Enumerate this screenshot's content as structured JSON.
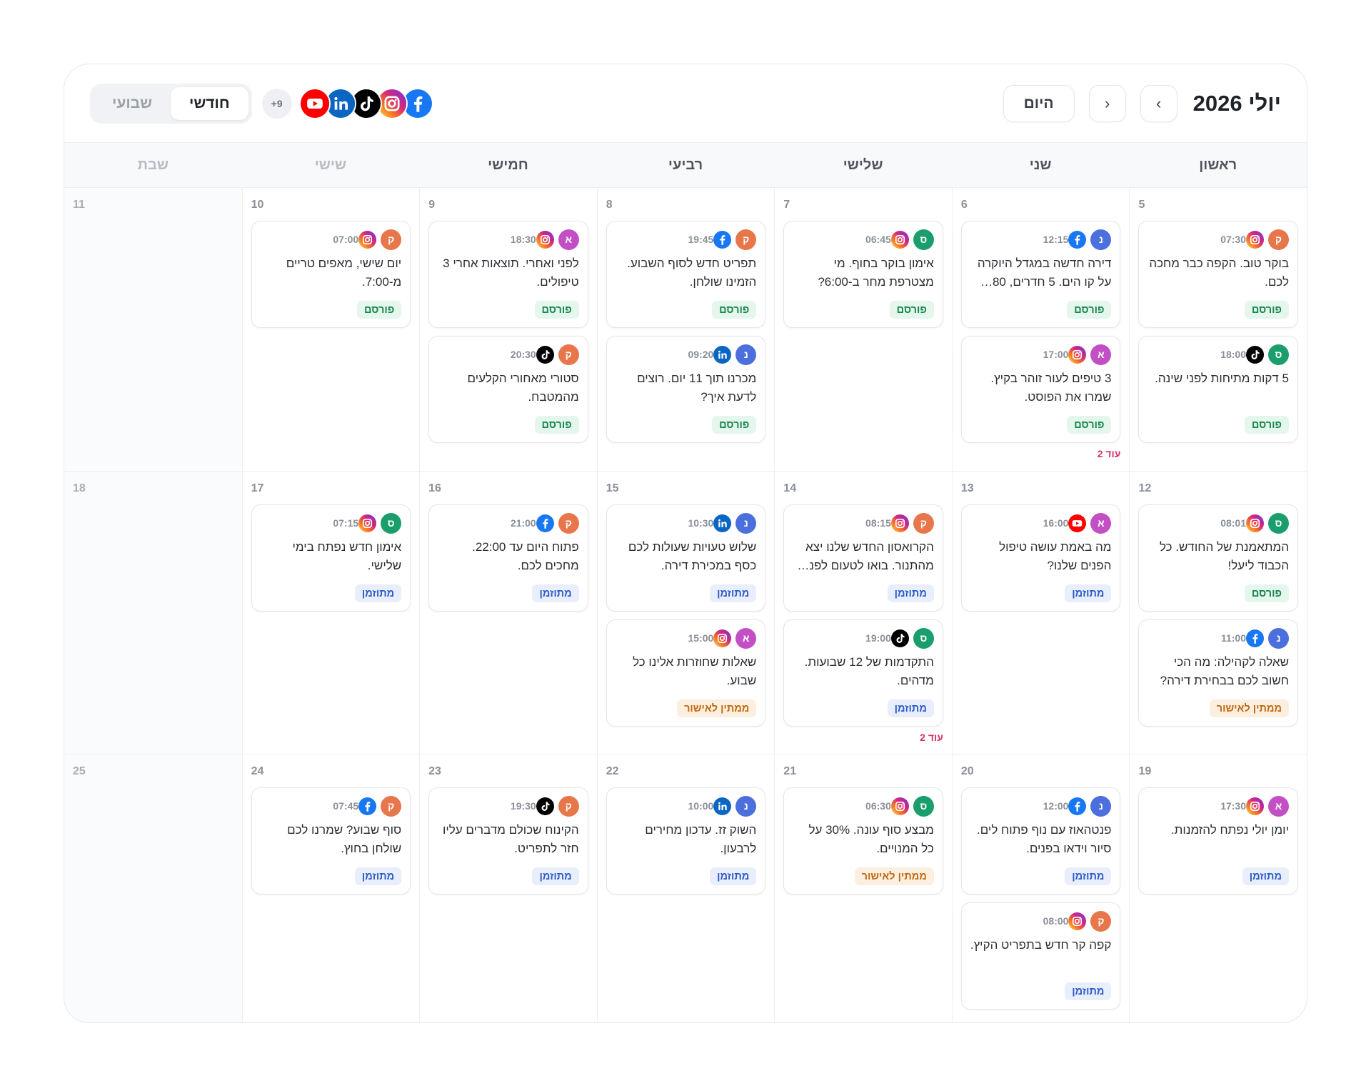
{
  "header": {
    "title": "יולי 2026",
    "prev": "‹",
    "next": "›",
    "today": "היום",
    "views": [
      "חודשי",
      "שבועי"
    ],
    "active_view": 0,
    "more_platforms": "+9",
    "platforms": [
      "facebook",
      "instagram",
      "tiktok",
      "linkedin",
      "youtube"
    ]
  },
  "weekdays": [
    "ראשון",
    "שני",
    "שלישי",
    "רביעי",
    "חמישי",
    "שישי",
    "שבת"
  ],
  "avatars": [
    {
      "letter": "ק",
      "color": "#e8764b"
    },
    {
      "letter": "ס",
      "color": "#1a9e6c"
    },
    {
      "letter": "נ",
      "color": "#4b6fdc"
    },
    {
      "letter": "א",
      "color": "#c24fc4"
    }
  ],
  "statuses": [
    {
      "label": "פורסם",
      "color": "#17864f",
      "background": "#e5f6ed"
    },
    {
      "label": "מתוזמן",
      "color": "#2d5bc8",
      "background": "#e8eefb"
    },
    {
      "label": "ממתין לאישור",
      "color": "#bf6a12",
      "background": "#fdefdf"
    }
  ],
  "weeks": [
    {
      "days": [
        {
          "day": 5,
          "posts": [
            {
              "time": "07:30",
              "avatar": 0,
              "platform": "instagram",
              "text": "בוקר טוב. הקפה כבר מחכה לכם.",
              "status": 0
            },
            {
              "time": "18:00",
              "avatar": 1,
              "platform": "tiktok",
              "text": "5 דקות מתיחות לפני שינה.",
              "status": 0
            }
          ]
        },
        {
          "day": 6,
          "posts": [
            {
              "time": "12:15",
              "avatar": 2,
              "platform": "facebook",
              "text": "דירה חדשה במגדל היוקרה על קו הים. 5 חדרים, 80…",
              "status": 0
            },
            {
              "time": "17:00",
              "avatar": 3,
              "platform": "instagram",
              "text": "3 טיפים לעור זוהר בקיץ. שמרו את הפוסט.",
              "status": 0
            }
          ],
          "more": "עוד 2"
        },
        {
          "day": 7,
          "posts": [
            {
              "time": "06:45",
              "avatar": 1,
              "platform": "instagram",
              "text": "אימון בוקר בחוף. מי מצטרפת מחר ב-6:00?",
              "status": 0
            }
          ]
        },
        {
          "day": 8,
          "posts": [
            {
              "time": "19:45",
              "avatar": 0,
              "platform": "facebook",
              "text": "תפריט חדש לסוף השבוע. הזמינו שולחן.",
              "status": 0
            },
            {
              "time": "09:20",
              "avatar": 2,
              "platform": "linkedin",
              "text": "מכרנו תוך 11 יום. רוצים לדעת איך?",
              "status": 0
            }
          ]
        },
        {
          "day": 9,
          "posts": [
            {
              "time": "18:30",
              "avatar": 3,
              "platform": "instagram",
              "text": "לפני ואחרי. תוצאות אחרי 3 טיפולים.",
              "status": 0
            },
            {
              "time": "20:30",
              "avatar": 0,
              "platform": "tiktok",
              "text": "סטורי מאחורי הקלעים מהמטבח.",
              "status": 0
            }
          ]
        },
        {
          "day": 10,
          "posts": [
            {
              "time": "07:00",
              "avatar": 0,
              "platform": "instagram",
              "text": "יום שישי, מאפים טריים מ-7:00.",
              "status": 0
            }
          ]
        },
        {
          "day": 11,
          "posts": []
        }
      ]
    },
    {
      "days": [
        {
          "day": 12,
          "posts": [
            {
              "time": "08:01",
              "avatar": 1,
              "platform": "instagram",
              "text": "המתאמנת של החודש. כל הכבוד ליעל!",
              "status": 0
            },
            {
              "time": "11:00",
              "avatar": 2,
              "platform": "facebook",
              "text": "שאלה לקהילה: מה הכי חשוב לכם בבחירת דירה?",
              "status": 2
            }
          ]
        },
        {
          "day": 13,
          "posts": [
            {
              "time": "16:00",
              "avatar": 3,
              "platform": "youtube",
              "text": "מה באמת עושה טיפול הפנים שלנו?",
              "status": 1
            }
          ]
        },
        {
          "day": 14,
          "posts": [
            {
              "time": "08:15",
              "avatar": 0,
              "platform": "instagram",
              "text": "הקרואסון החדש שלנו יצא מהתנור. בואו לטעום לפנ…",
              "status": 1
            },
            {
              "time": "19:00",
              "avatar": 1,
              "platform": "tiktok",
              "text": "התקדמות של 12 שבועות. מדהים.",
              "status": 1
            }
          ],
          "more": "עוד 2"
        },
        {
          "day": 15,
          "posts": [
            {
              "time": "10:30",
              "avatar": 2,
              "platform": "linkedin",
              "text": "שלוש טעויות שעולות לכם כסף במכירת דירה.",
              "status": 1
            },
            {
              "time": "15:00",
              "avatar": 3,
              "platform": "instagram",
              "text": "שאלות שחוזרות אלינו כל שבוע.",
              "status": 2
            }
          ]
        },
        {
          "day": 16,
          "posts": [
            {
              "time": "21:00",
              "avatar": 0,
              "platform": "facebook",
              "text": "פתוח היום עד 22:00. מחכים לכם.",
              "status": 1
            }
          ]
        },
        {
          "day": 17,
          "posts": [
            {
              "time": "07:15",
              "avatar": 1,
              "platform": "instagram",
              "text": "אימון חדש נפתח בימי שלישי.",
              "status": 1
            }
          ]
        },
        {
          "day": 18,
          "posts": []
        }
      ]
    },
    {
      "days": [
        {
          "day": 19,
          "posts": [
            {
              "time": "17:30",
              "avatar": 3,
              "platform": "instagram",
              "text": "יומן יולי נפתח להזמנות.",
              "status": 1
            }
          ]
        },
        {
          "day": 20,
          "posts": [
            {
              "time": "12:00",
              "avatar": 2,
              "platform": "facebook",
              "text": "פנטהאוז עם נוף פתוח לים. סיור וידאו בפנים.",
              "status": 1
            },
            {
              "time": "08:00",
              "avatar": 0,
              "platform": "instagram",
              "text": "קפה קר חדש בתפריט הקיץ.",
              "status": 1
            }
          ]
        },
        {
          "day": 21,
          "posts": [
            {
              "time": "06:30",
              "avatar": 1,
              "platform": "instagram",
              "text": "מבצע סוף עונה. 30% על כל המנויים.",
              "status": 2
            }
          ]
        },
        {
          "day": 22,
          "posts": [
            {
              "time": "10:00",
              "avatar": 2,
              "platform": "linkedin",
              "text": "השוק זז. עדכון מחירים לרבעון.",
              "status": 1
            }
          ]
        },
        {
          "day": 23,
          "posts": [
            {
              "time": "19:30",
              "avatar": 0,
              "platform": "tiktok",
              "text": "הקינוח שכולם מדברים עליו חזר לתפריט.",
              "status": 1
            }
          ]
        },
        {
          "day": 24,
          "posts": [
            {
              "time": "07:45",
              "avatar": 0,
              "platform": "facebook",
              "text": "סוף שבוע? שמרנו לכם שולחן בחוץ.",
              "status": 1
            }
          ]
        },
        {
          "day": 25,
          "posts": []
        }
      ]
    }
  ]
}
